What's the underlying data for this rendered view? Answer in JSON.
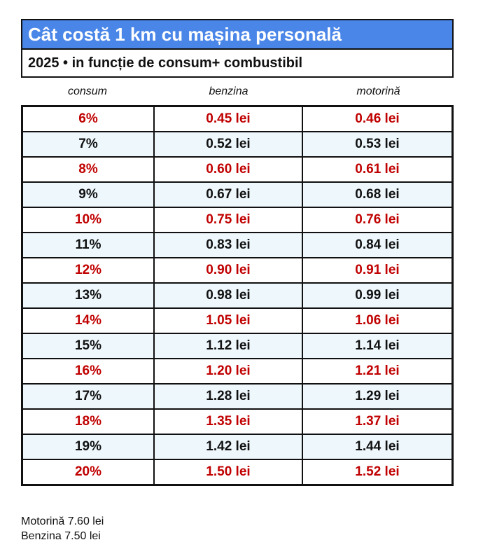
{
  "title": "Cât costă 1 km cu mașina personală",
  "subtitle": "2025 • in funcție de consum+ combustibil",
  "columns": [
    "consum",
    "benzina",
    "motorină"
  ],
  "colors": {
    "title_bg": "#4a86e8",
    "highlight_text": "#c00000",
    "alt_row_bg": "#eef7fc"
  },
  "rows": [
    [
      "6%",
      "0.45 lei",
      "0.46 lei"
    ],
    [
      "7%",
      "0.52 lei",
      "0.53 lei"
    ],
    [
      "8%",
      "0.60 lei",
      "0.61 lei"
    ],
    [
      "9%",
      "0.67 lei",
      "0.68 lei"
    ],
    [
      "10%",
      "0.75 lei",
      "0.76 lei"
    ],
    [
      "11%",
      "0.83 lei",
      "0.84 lei"
    ],
    [
      "12%",
      "0.90 lei",
      "0.91 lei"
    ],
    [
      "13%",
      "0.98 lei",
      "0.99 lei"
    ],
    [
      "14%",
      "1.05 lei",
      "1.06 lei"
    ],
    [
      "15%",
      "1.12 lei",
      "1.14 lei"
    ],
    [
      "16%",
      "1.20 lei",
      "1.21 lei"
    ],
    [
      "17%",
      "1.28 lei",
      "1.29 lei"
    ],
    [
      "18%",
      "1.35 lei",
      "1.37 lei"
    ],
    [
      "19%",
      "1.42 lei",
      "1.44 lei"
    ],
    [
      "20%",
      "1.50 lei",
      "1.52 lei"
    ]
  ],
  "footnotes": [
    "Motorină 7.60 lei",
    "Benzina 7.50 lei"
  ]
}
